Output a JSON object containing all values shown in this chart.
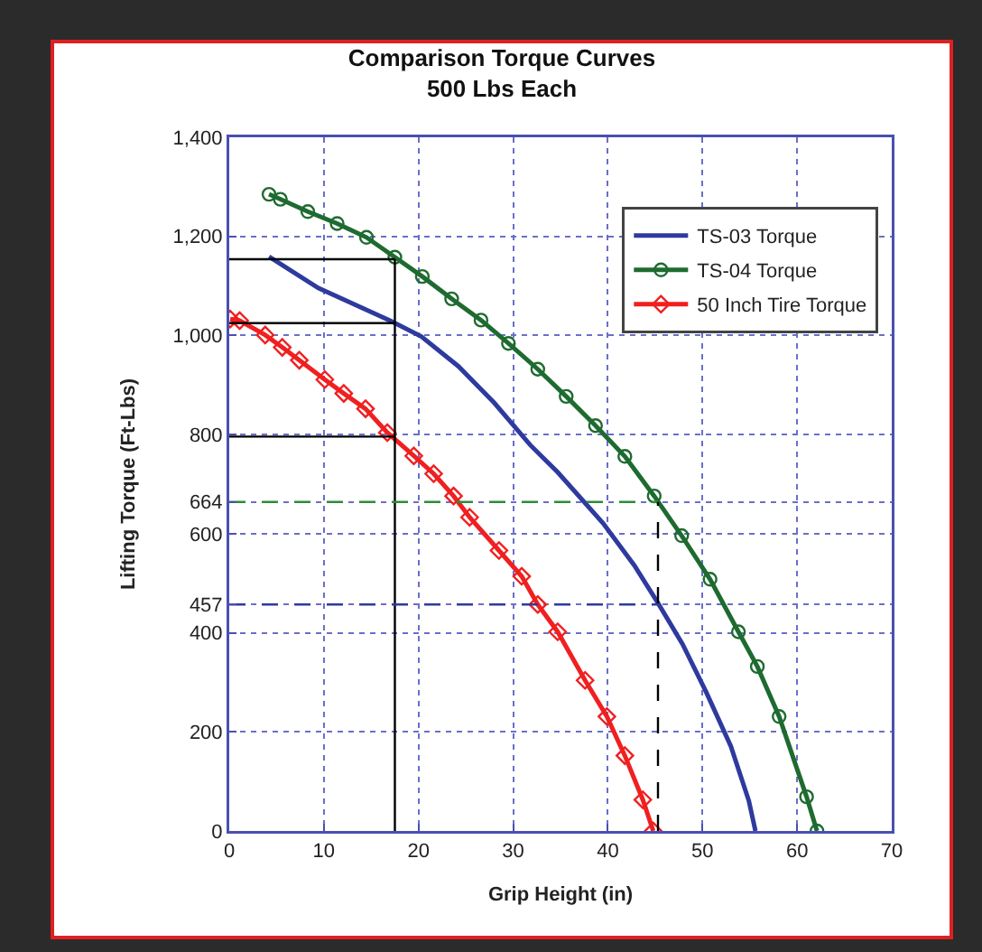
{
  "chart_data": {
    "type": "line",
    "title": "Comparison Torque Curves\n500 Lbs Each",
    "xlabel": "Grip Height (in)",
    "ylabel": "Lifting Torque (Ft-Lbs)",
    "xlim": [
      0,
      70
    ],
    "xticks": [
      0,
      10,
      20,
      30,
      40,
      50,
      60,
      70
    ],
    "ylim": [
      0,
      1400
    ],
    "yticks": [
      0,
      200,
      400,
      457,
      600,
      664,
      800,
      {
        "value": 1000,
        "label": "1,000"
      },
      {
        "value": 1200,
        "label": "1,200"
      },
      {
        "value": 1400,
        "label": "1,400"
      }
    ],
    "grid": true,
    "legend": "top right",
    "series": [
      {
        "name": "TS-03 Torque",
        "color": "#2e3a9e",
        "marker": "none",
        "line_style": "solid",
        "x": [
          4.2,
          9.4,
          17.1,
          20.3,
          24.2,
          28,
          31.8,
          34.7,
          39.5,
          42.8,
          45.3,
          47.9,
          50.4,
          53,
          54.9,
          55.6
        ],
        "values": [
          1159,
          1096,
          1029,
          998,
          938,
          864,
          779,
          724,
          621,
          536,
          460,
          377,
          280,
          171,
          61,
          0
        ]
      },
      {
        "name": "TS-04 Torque",
        "color": "#1e6b30",
        "marker": "circle",
        "line_style": "solid",
        "x": [
          4.2,
          5.4,
          8.3,
          11.4,
          14.5,
          17.5,
          20.4,
          23.5,
          26.6,
          29.5,
          32.6,
          35.6,
          38.7,
          41.8,
          44.9,
          47.8,
          50.8,
          53.8,
          55.8,
          58.1,
          61,
          62.1
        ],
        "values": [
          1285,
          1275,
          1250,
          1226,
          1198,
          1158,
          1119,
          1074,
          1031,
          984,
          932,
          877,
          818,
          756,
          676,
          596,
          508,
          402,
          332,
          231,
          69,
          0
        ]
      },
      {
        "name": "50 Inch Tire Torque",
        "color": "#f02020",
        "marker": "diamond",
        "line_style": "solid",
        "x": [
          0.1,
          1.1,
          3.8,
          5.6,
          7.4,
          10.1,
          12.1,
          14.4,
          16.7,
          19.5,
          21.6,
          23.7,
          25.4,
          28.5,
          30.9,
          32.6,
          34.7,
          37.6,
          39.9,
          41.8,
          43.7,
          44.8
        ],
        "values": [
          1033,
          1030,
          1001,
          976,
          950,
          911,
          883,
          852,
          804,
          757,
          721,
          676,
          633,
          566,
          514,
          457,
          402,
          304,
          231,
          152,
          63,
          0
        ]
      },
      {
        "color": "#000000",
        "marker": "none",
        "line_style": "solid",
        "x": [
          17.5,
          17.5
        ],
        "values": [
          0,
          1154
        ]
      },
      {
        "color": "#000000",
        "marker": "none",
        "line_style": "solid",
        "x": [
          0,
          17.5
        ],
        "values": [
          1154,
          1154
        ]
      },
      {
        "color": "#000000",
        "marker": "none",
        "line_style": "solid",
        "x": [
          0,
          17.5
        ],
        "values": [
          1025,
          1025
        ]
      },
      {
        "color": "#000000",
        "marker": "none",
        "line_style": "solid",
        "x": [
          0,
          17.5
        ],
        "values": [
          796,
          796
        ]
      },
      {
        "color": "#2e8b3a",
        "marker": "none",
        "line_style": "dashed",
        "x": [
          0,
          45.3
        ],
        "values": [
          664,
          664
        ]
      },
      {
        "color": "#2e3a9e",
        "marker": "none",
        "line_style": "dashed",
        "x": [
          0,
          45.3
        ],
        "values": [
          457,
          457
        ]
      },
      {
        "color": "#000000",
        "marker": "none",
        "line_style": "dashed",
        "x": [
          45.3,
          45.3
        ],
        "values": [
          0,
          664
        ]
      }
    ]
  }
}
